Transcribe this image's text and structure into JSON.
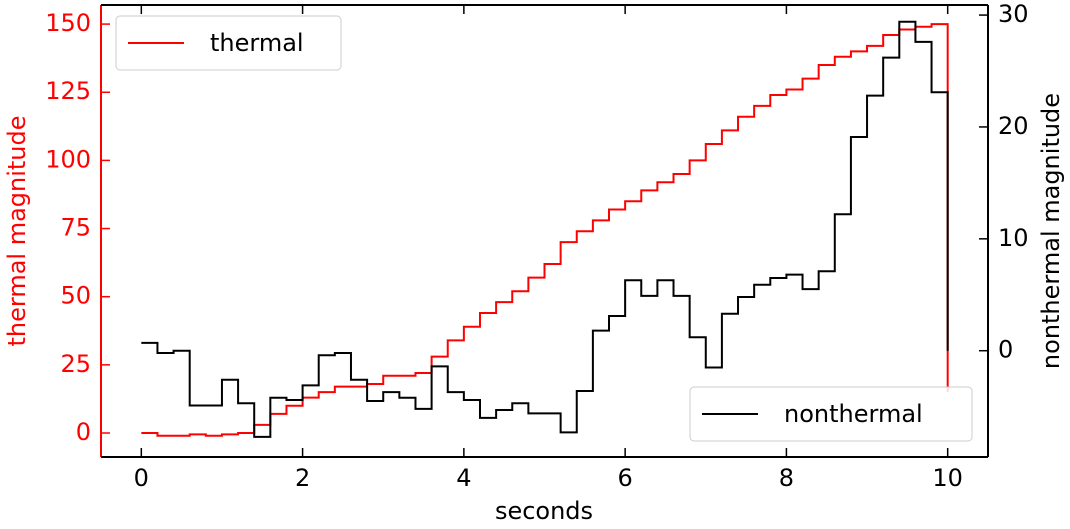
{
  "chart_data": {
    "type": "step",
    "xlabel": "seconds",
    "ylabel": "thermal magnitude",
    "y2label": "nonthermal magnitude",
    "x": [
      0,
      0.2,
      0.4,
      0.6,
      0.8,
      1.0,
      1.2,
      1.4,
      1.6,
      1.8,
      2.0,
      2.2,
      2.4,
      2.6,
      2.8,
      3.0,
      3.2,
      3.4,
      3.6,
      3.8,
      4.0,
      4.2,
      4.4,
      4.6,
      4.8,
      5.0,
      5.2,
      5.4,
      5.6,
      5.8,
      6.0,
      6.2,
      6.4,
      6.6,
      6.8,
      7.0,
      7.2,
      7.4,
      7.6,
      7.8,
      8.0,
      8.2,
      8.4,
      8.6,
      8.8,
      9.0,
      9.2,
      9.4,
      9.6,
      9.8,
      10
    ],
    "series": [
      {
        "name": "thermal",
        "color": "#ff0000",
        "axis": "y",
        "values": [
          0,
          -1,
          -1,
          -0.5,
          -1,
          -0.5,
          0,
          3,
          7,
          10,
          13,
          15,
          17,
          17,
          18,
          21,
          21,
          22,
          28,
          34,
          39,
          44,
          48,
          52,
          57,
          62,
          70,
          74,
          78,
          82,
          85,
          89,
          92,
          95,
          100,
          106,
          111,
          116,
          120,
          124,
          126,
          130,
          135,
          138,
          140,
          142,
          146,
          148,
          149,
          150,
          15
        ]
      },
      {
        "name": "nonthermal",
        "color": "#000000",
        "axis": "y2",
        "values": [
          0.7,
          -0.2,
          0,
          -4.9,
          -4.9,
          -2.6,
          -4.7,
          -7.7,
          -4.2,
          -4.4,
          -3.1,
          -0.4,
          -0.2,
          -2.6,
          -4.5,
          -3.7,
          -4.2,
          -5.2,
          -1.4,
          -3.7,
          -4.4,
          -6,
          -5.3,
          -4.7,
          -5.6,
          -5.6,
          -7.3,
          -3.6,
          1.8,
          3.1,
          6.3,
          4.9,
          6.3,
          4.9,
          1.2,
          -1.5,
          3.3,
          4.8,
          5.9,
          6.5,
          6.8,
          5.5,
          7.1,
          12.2,
          19.1,
          22.8,
          26.2,
          29.4,
          27.6,
          23.1,
          0
        ]
      }
    ],
    "xlim": [
      -0.5,
      10.5
    ],
    "xticks": [
      0,
      2,
      4,
      6,
      8,
      10
    ],
    "ylim": [
      -8.8,
      157
    ],
    "yticks": [
      0,
      25,
      50,
      75,
      100,
      125,
      150
    ],
    "y2lim": [
      -9.5,
      30.9
    ],
    "y2ticks": [
      0,
      10,
      20,
      30
    ],
    "ycolor": "#ff0000"
  }
}
